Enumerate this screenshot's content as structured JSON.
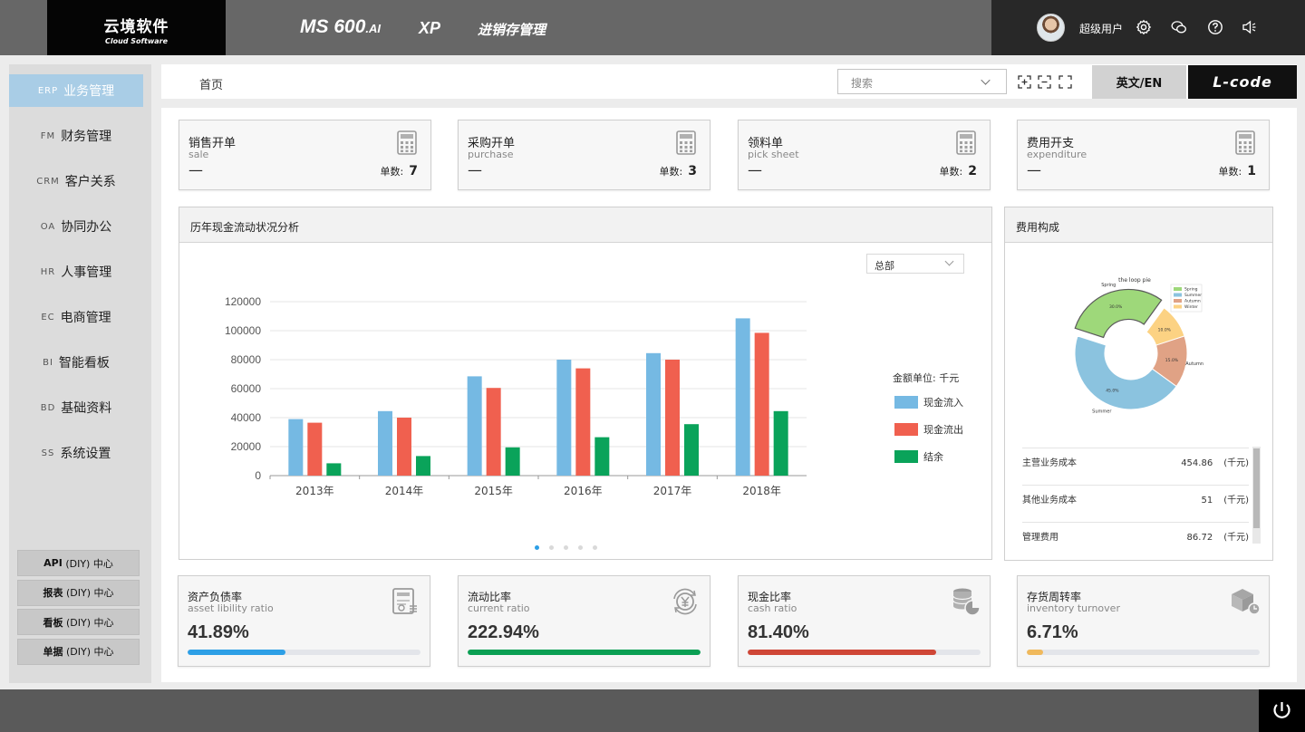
{
  "header": {
    "logo_cn": "云境软件",
    "logo_en": "Cloud Software",
    "product": "MS 600",
    "product_suffix": ".AI",
    "edition": "XP",
    "module": "进销存管理",
    "username": "超级用户",
    "icons": [
      "settings-icon",
      "wechat-icon",
      "help-icon",
      "sound-icon"
    ]
  },
  "sidebar": {
    "items": [
      {
        "abbr": "ERP",
        "label": "业务管理",
        "active": true
      },
      {
        "abbr": "FM",
        "label": "财务管理"
      },
      {
        "abbr": "CRM",
        "label": "客户关系"
      },
      {
        "abbr": "OA",
        "label": "协同办公"
      },
      {
        "abbr": "HR",
        "label": "人事管理"
      },
      {
        "abbr": "EC",
        "label": "电商管理"
      },
      {
        "abbr": "BI",
        "label": "智能看板"
      },
      {
        "abbr": "BD",
        "label": "基础资料"
      },
      {
        "abbr": "SS",
        "label": "系统设置"
      }
    ],
    "diy": [
      {
        "name": "API",
        "suffix": "(DIY) 中心"
      },
      {
        "name": "报表",
        "suffix": "(DIY) 中心"
      },
      {
        "name": "看板",
        "suffix": "(DIY) 中心"
      },
      {
        "name": "单据",
        "suffix": "(DIY) 中心"
      }
    ]
  },
  "toolbar": {
    "breadcrumb": "首页",
    "search_placeholder": "搜索",
    "lang_label": "英文/EN",
    "lcode_label": "L-code"
  },
  "cards": [
    {
      "title": "销售开单",
      "subtitle": "sale",
      "dash": "—",
      "count_label": "单数:",
      "count": "7"
    },
    {
      "title": "采购开单",
      "subtitle": "purchase",
      "dash": "—",
      "count_label": "单数:",
      "count": "3"
    },
    {
      "title": "领料单",
      "subtitle": "pick sheet",
      "dash": "—",
      "count_label": "单数:",
      "count": "2"
    },
    {
      "title": "费用开支",
      "subtitle": "expenditure",
      "dash": "—",
      "count_label": "单数:",
      "count": "1"
    }
  ],
  "cashflow": {
    "title": "历年现金流动状况分析",
    "dropdown": "总部",
    "unit": "金额单位: 千元"
  },
  "chart_data": {
    "type": "bar",
    "categories": [
      "2013年",
      "2014年",
      "2015年",
      "2016年",
      "2017年",
      "2018年"
    ],
    "series": [
      {
        "name": "现金流入",
        "color": "#75b9e3",
        "values": [
          39000,
          44500,
          68500,
          80000,
          84500,
          108500
        ]
      },
      {
        "name": "现金流出",
        "color": "#f0604f",
        "values": [
          36500,
          40000,
          60500,
          74000,
          80000,
          98500
        ]
      },
      {
        "name": "结余",
        "color": "#0aa35a",
        "values": [
          8500,
          13500,
          19500,
          26500,
          35500,
          44500
        ]
      }
    ],
    "ylim": [
      0,
      120000
    ],
    "yticks": [
      "0",
      "20000",
      "40000",
      "60000",
      "80000",
      "100000",
      "120000"
    ],
    "legend": "right",
    "grid": true
  },
  "expense": {
    "title": "费用构成",
    "pie_title": "the loop pie",
    "pie_legend": [
      "Spring",
      "Summer",
      "Autumn",
      "Winter"
    ],
    "pie_values": [
      30.0,
      45.0,
      15.0,
      10.0
    ],
    "pie_labels": [
      "30.0%",
      "45.0%",
      "15.0%",
      "10.0%"
    ],
    "pie_colors": [
      "#9ed87a",
      "#8bc3df",
      "#e0a285",
      "#fcd283"
    ],
    "rows": [
      {
        "label": "主营业务成本",
        "value": "454.86",
        "unit": "(千元)"
      },
      {
        "label": "其他业务成本",
        "value": "51",
        "unit": "(千元)"
      },
      {
        "label": "管理费用",
        "value": "86.72",
        "unit": "(千元)"
      }
    ]
  },
  "ratios": [
    {
      "title": "资产负债率",
      "subtitle": "asset libility ratio",
      "value": "41.89%",
      "fill": 0.42,
      "color": "#2d9fe6",
      "icon": "document-icon"
    },
    {
      "title": "流动比率",
      "subtitle": "current ratio",
      "value": "222.94%",
      "fill": 1.0,
      "color": "#0a9f53",
      "icon": "yen-exchange-icon"
    },
    {
      "title": "现金比率",
      "subtitle": "cash ratio",
      "value": "81.40%",
      "fill": 0.81,
      "color": "#cf4636",
      "icon": "coins-icon"
    },
    {
      "title": "存货周转率",
      "subtitle": "inventory turnover",
      "value": "6.71%",
      "fill": 0.07,
      "color": "#f0b95c",
      "icon": "box-icon"
    }
  ]
}
